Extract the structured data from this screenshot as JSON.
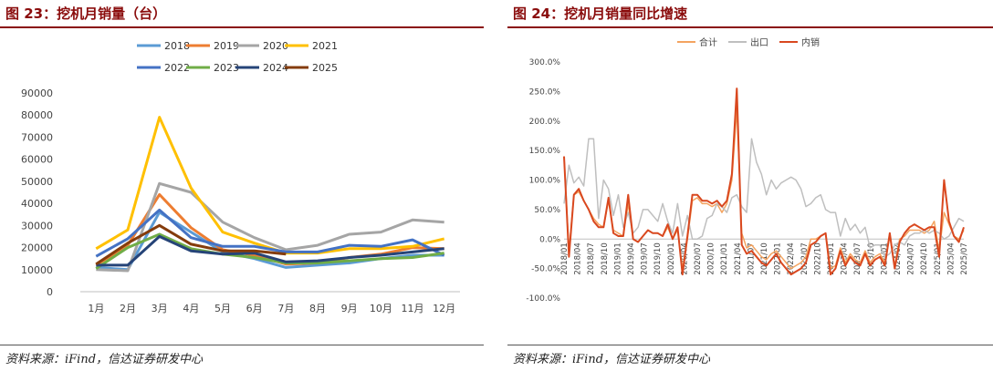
{
  "left": {
    "fig_title": "图 23：挖机月销量（台）",
    "source": "资料来源：iFind，信达证券研发中心",
    "chart_data": {
      "type": "line",
      "title": "",
      "categories": [
        "1月",
        "2月",
        "3月",
        "4月",
        "5月",
        "6月",
        "7月",
        "8月",
        "9月",
        "10月",
        "11月",
        "12月"
      ],
      "ylim": [
        0,
        90000
      ],
      "yticks": [
        "0",
        "10000",
        "20000",
        "30000",
        "40000",
        "50000",
        "60000",
        "70000",
        "80000",
        "90000"
      ],
      "grid": false,
      "legend": "top",
      "series": [
        {
          "name": "2018",
          "color": "#5b9bd5",
          "values": [
            11000,
            10000,
            36000,
            27000,
            18000,
            15000,
            11000,
            12000,
            13000,
            15000,
            16500,
            16500
          ]
        },
        {
          "name": "2019",
          "color": "#ed7d31",
          "values": [
            12000,
            21000,
            44000,
            29000,
            19000,
            16500,
            12500,
            13000,
            15500,
            17000,
            20000,
            19500
          ]
        },
        {
          "name": "2020",
          "color": "#a5a5a5",
          "values": [
            10000,
            9500,
            49000,
            45000,
            31500,
            24500,
            19000,
            21000,
            26000,
            27000,
            32500,
            31500
          ]
        },
        {
          "name": "2021",
          "color": "#ffc000",
          "values": [
            19500,
            28000,
            79000,
            47000,
            27000,
            22000,
            17500,
            17500,
            19500,
            19500,
            20500,
            24000
          ]
        },
        {
          "name": "2022",
          "color": "#4472c4",
          "values": [
            16000,
            24000,
            37000,
            24500,
            20500,
            20500,
            18000,
            18000,
            21000,
            20500,
            23500,
            16500
          ]
        },
        {
          "name": "2023",
          "color": "#70ad47",
          "values": [
            10500,
            20000,
            26000,
            19500,
            17000,
            15500,
            13000,
            13000,
            14000,
            15000,
            15500,
            17500
          ]
        },
        {
          "name": "2024",
          "color": "#264478",
          "values": [
            12000,
            12000,
            25000,
            18500,
            17000,
            17500,
            13500,
            14000,
            15500,
            16500,
            18000,
            19500
          ]
        },
        {
          "name": "2025",
          "color": "#843c0c",
          "values": [
            12500,
            22000,
            30000,
            21500,
            18500,
            18500,
            17000,
            null,
            null,
            null,
            null,
            null
          ]
        }
      ]
    }
  },
  "right": {
    "fig_title": "图 24：挖机月销量同比增速",
    "source": "资料来源：iFind，信达证券研发中心",
    "chart_data": {
      "type": "line",
      "title": "",
      "ylim": [
        -100,
        300
      ],
      "yticks": [
        "-100.0%",
        "-50.0%",
        "0.0%",
        "50.0%",
        "100.0%",
        "150.0%",
        "200.0%",
        "250.0%",
        "300.0%"
      ],
      "xtick_labels": [
        "2018/01",
        "2018/04",
        "2018/07",
        "2018/10",
        "2019/01",
        "2019/04",
        "2019/07",
        "2019/10",
        "2020/01",
        "2020/04",
        "2020/07",
        "2020/10",
        "2021/01",
        "2021/04",
        "2021/07",
        "2021/10",
        "2022/01",
        "2022/04",
        "2022/07",
        "2022/10",
        "2023/01",
        "2023/04",
        "2023/07",
        "2023/10",
        "2024/01",
        "2024/04",
        "2024/07",
        "2024/10",
        "2025/01",
        "2025/04",
        "2025/07"
      ],
      "x_range": [
        "2018/01",
        "2025/07"
      ],
      "legend": "top",
      "series": [
        {
          "name": "合计",
          "color": "#f4a460",
          "values": [
            140,
            -20,
            75,
            80,
            65,
            50,
            35,
            25,
            20,
            65,
            15,
            10,
            5,
            60,
            0,
            -5,
            5,
            15,
            10,
            10,
            5,
            20,
            0,
            15,
            -50,
            0,
            65,
            70,
            60,
            60,
            55,
            60,
            45,
            60,
            100,
            220,
            10,
            -15,
            -10,
            -20,
            -30,
            -35,
            -25,
            -20,
            -30,
            -40,
            -50,
            -45,
            -40,
            -30,
            0,
            0,
            5,
            10,
            -50,
            -45,
            -15,
            -40,
            -25,
            -35,
            -40,
            -20,
            -40,
            -30,
            -25,
            -40,
            5,
            -45,
            0,
            5,
            15,
            15,
            15,
            10,
            15,
            30,
            -20,
            45,
            25,
            5,
            0,
            15
          ]
        },
        {
          "name": "出口",
          "color": "#bfbfbf",
          "values": [
            60,
            125,
            95,
            105,
            90,
            170,
            170,
            35,
            100,
            85,
            40,
            75,
            20,
            45,
            10,
            20,
            50,
            50,
            40,
            30,
            60,
            30,
            10,
            60,
            5,
            40,
            0,
            0,
            5,
            35,
            40,
            60,
            55,
            45,
            70,
            75,
            55,
            45,
            170,
            130,
            110,
            75,
            100,
            85,
            95,
            100,
            105,
            100,
            85,
            55,
            60,
            70,
            75,
            50,
            45,
            45,
            5,
            35,
            15,
            25,
            10,
            20,
            -15,
            -10,
            -10,
            -30,
            -25,
            -10,
            -5,
            -10,
            5,
            10,
            10,
            15,
            10,
            15,
            10,
            0,
            5,
            20,
            35,
            30
          ]
        },
        {
          "name": "内销",
          "color": "#d9481f",
          "values": [
            140,
            -30,
            75,
            85,
            65,
            50,
            30,
            20,
            20,
            70,
            10,
            5,
            5,
            75,
            0,
            -5,
            5,
            15,
            10,
            10,
            5,
            25,
            0,
            20,
            -60,
            5,
            75,
            75,
            65,
            65,
            60,
            65,
            55,
            65,
            110,
            255,
            -10,
            -25,
            -20,
            -30,
            -40,
            -45,
            -35,
            -25,
            -40,
            -50,
            -60,
            -55,
            -50,
            -40,
            -10,
            -5,
            5,
            10,
            -60,
            -50,
            -20,
            -45,
            -30,
            -40,
            -45,
            -25,
            -45,
            -35,
            -30,
            -45,
            10,
            -50,
            -5,
            10,
            20,
            25,
            20,
            15,
            20,
            20,
            -30,
            100,
            30,
            5,
            -5,
            20
          ]
        }
      ]
    }
  }
}
